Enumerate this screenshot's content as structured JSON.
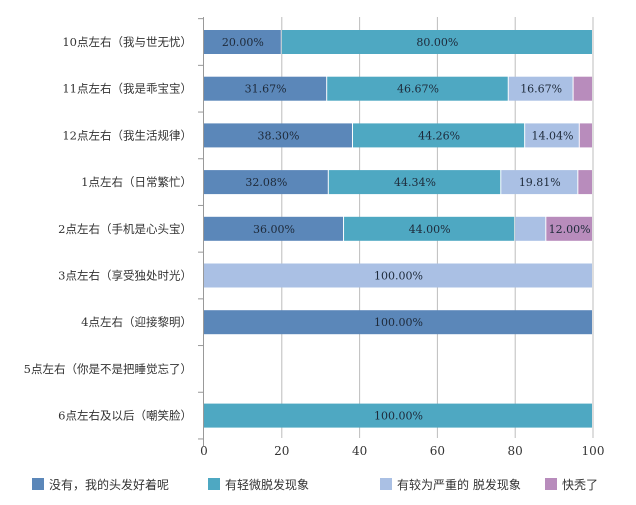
{
  "chart_data": {
    "type": "bar",
    "orientation": "horizontal",
    "stacked": true,
    "categories": [
      "10点左右（我与世无忧）",
      "11点左右（我是乖宝宝）",
      "12点左右（我生活规律）",
      "1点左右（日常繁忙）",
      "2点左右（手机是心头宝）",
      "3点左右（享受独处时光）",
      "4点左右（迎接黎明）",
      "5点左右（你是不是把睡觉忘了）",
      "6点左右及以后（嘲笑脸）"
    ],
    "series": [
      {
        "name": "没有，我的头发好着呢",
        "color": "#5b87b9",
        "values": [
          20.0,
          31.67,
          38.3,
          32.08,
          36.0,
          0,
          100.0,
          0,
          0
        ],
        "labels": [
          "20.00%",
          "31.67%",
          "38.30%",
          "32.08%",
          "36.00%",
          "",
          "100.00%",
          "",
          ""
        ]
      },
      {
        "name": "有轻微脱发现象",
        "color": "#4ea8c2",
        "values": [
          80.0,
          46.67,
          44.26,
          44.34,
          44.0,
          0,
          0,
          0,
          100.0
        ],
        "labels": [
          "80.00%",
          "46.67%",
          "44.26%",
          "44.34%",
          "44.00%",
          "",
          "",
          "",
          "100.00%"
        ]
      },
      {
        "name": "有较为严重的 脱发现象",
        "color": "#aac0e4",
        "values": [
          0,
          16.67,
          14.04,
          19.81,
          8.0,
          100.0,
          0,
          0,
          0
        ],
        "labels": [
          "",
          "16.67%",
          "14.04%",
          "19.81%",
          "",
          "100.00%",
          "",
          "",
          ""
        ]
      },
      {
        "name": "快秃了",
        "color": "#b88cbc",
        "values": [
          0,
          5.0,
          3.4,
          3.77,
          12.0,
          0,
          0,
          0,
          0
        ],
        "labels": [
          "",
          "",
          "",
          "",
          "12.00%",
          "",
          "",
          "",
          ""
        ]
      }
    ],
    "xlim": [
      0,
      100
    ],
    "xticks": [
      "0",
      "20",
      "40",
      "60",
      "80",
      "100"
    ],
    "grid": true,
    "legend": "bottom"
  }
}
